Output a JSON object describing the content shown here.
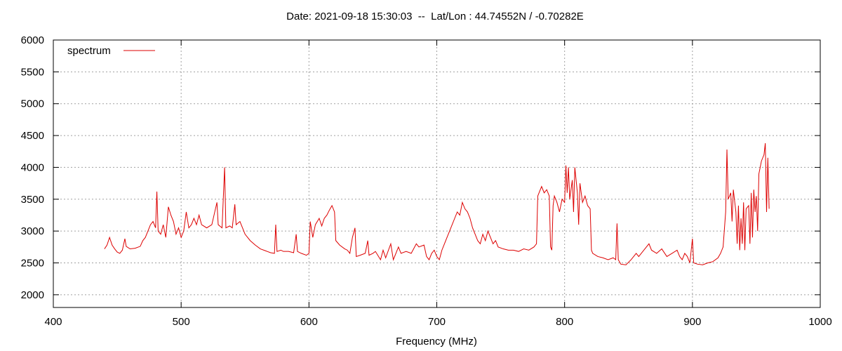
{
  "chart_data": {
    "type": "line",
    "title": "Date: 2021-09-18 15:30:03  --  Lat/Lon : 44.74552N / -0.70282E",
    "x_label": "Frequency (MHz)",
    "xlim": [
      400,
      1000
    ],
    "xticks": [
      400,
      500,
      600,
      700,
      800,
      900,
      1000
    ],
    "ylim": [
      1800,
      6000
    ],
    "yticks": [
      2000,
      2500,
      3000,
      3500,
      4000,
      4500,
      5000,
      5500,
      6000
    ],
    "grid": true,
    "legend": "top left",
    "series": [
      {
        "name": "spectrum",
        "color": "#dd0000",
        "x": [
          440,
          442,
          444,
          446,
          448,
          450,
          452,
          454,
          456,
          457,
          460,
          464,
          468,
          470,
          472,
          474,
          476,
          478,
          480,
          481,
          482,
          484,
          486,
          488,
          490,
          492,
          494,
          496,
          498,
          500,
          502,
          504,
          506,
          508,
          510,
          512,
          514,
          516,
          520,
          524,
          528,
          529,
          532,
          534,
          535,
          538,
          540,
          542,
          543,
          546,
          548,
          550,
          554,
          558,
          562,
          566,
          570,
          573,
          574,
          575,
          578,
          580,
          584,
          588,
          590,
          591,
          594,
          598,
          600,
          601,
          603,
          605,
          608,
          610,
          612,
          614,
          616,
          618,
          620,
          621,
          624,
          628,
          630,
          632,
          634,
          636,
          637,
          640,
          644,
          646,
          647,
          650,
          652,
          656,
          658,
          660,
          664,
          666,
          668,
          670,
          672,
          676,
          680,
          684,
          686,
          690,
          692,
          694,
          696,
          698,
          700,
          702,
          704,
          706,
          708,
          710,
          712,
          714,
          716,
          718,
          720,
          722,
          724,
          726,
          728,
          730,
          732,
          734,
          736,
          738,
          740,
          742,
          744,
          746,
          748,
          752,
          756,
          760,
          764,
          768,
          772,
          776,
          778,
          779,
          780,
          782,
          784,
          786,
          788,
          789,
          790,
          791,
          792,
          794,
          796,
          798,
          800,
          801,
          802,
          803,
          804,
          806,
          807,
          808,
          810,
          811,
          812,
          814,
          816,
          818,
          820,
          821,
          822,
          826,
          830,
          834,
          838,
          840,
          841,
          842,
          844,
          848,
          852,
          856,
          858,
          862,
          866,
          868,
          872,
          876,
          880,
          884,
          888,
          890,
          892,
          894,
          896,
          898,
          900,
          901,
          904,
          908,
          912,
          916,
          920,
          922,
          924,
          926,
          927,
          928,
          930,
          931,
          932,
          934,
          935,
          936,
          937,
          938,
          939,
          940,
          941,
          942,
          944,
          945,
          946,
          947,
          948,
          949,
          950,
          951,
          952,
          954,
          956,
          957,
          958,
          959,
          960
        ],
        "values": [
          2720,
          2780,
          2900,
          2780,
          2720,
          2670,
          2650,
          2700,
          2880,
          2760,
          2720,
          2730,
          2760,
          2850,
          2900,
          3000,
          3100,
          3150,
          3050,
          3620,
          3000,
          2950,
          3100,
          2900,
          3380,
          3250,
          3150,
          2950,
          3050,
          2900,
          3000,
          3300,
          3050,
          3100,
          3200,
          3100,
          3250,
          3100,
          3050,
          3100,
          3450,
          3100,
          3050,
          4000,
          3050,
          3080,
          3050,
          3420,
          3100,
          3150,
          3050,
          2950,
          2850,
          2780,
          2720,
          2690,
          2660,
          2650,
          3100,
          2680,
          2700,
          2680,
          2680,
          2660,
          2950,
          2680,
          2650,
          2620,
          2650,
          3150,
          2900,
          3100,
          3200,
          3080,
          3200,
          3250,
          3330,
          3400,
          3300,
          2850,
          2780,
          2720,
          2700,
          2650,
          2900,
          3050,
          2600,
          2620,
          2650,
          2850,
          2620,
          2650,
          2680,
          2550,
          2700,
          2580,
          2800,
          2550,
          2650,
          2750,
          2650,
          2680,
          2650,
          2800,
          2750,
          2780,
          2600,
          2550,
          2650,
          2700,
          2600,
          2550,
          2700,
          2800,
          2900,
          3000,
          3100,
          3200,
          3300,
          3250,
          3450,
          3350,
          3300,
          3200,
          3050,
          2950,
          2850,
          2800,
          2950,
          2850,
          3000,
          2900,
          2800,
          2850,
          2750,
          2720,
          2700,
          2700,
          2680,
          2720,
          2700,
          2750,
          2800,
          3550,
          3600,
          3700,
          3600,
          3650,
          3550,
          2750,
          2700,
          3400,
          3550,
          3450,
          3300,
          3500,
          3450,
          4030,
          3600,
          4000,
          3500,
          3800,
          3300,
          4000,
          3600,
          3100,
          3750,
          3450,
          3550,
          3400,
          3350,
          2700,
          2650,
          2600,
          2580,
          2550,
          2580,
          2550,
          3120,
          2550,
          2480,
          2470,
          2550,
          2650,
          2600,
          2700,
          2800,
          2700,
          2650,
          2720,
          2600,
          2650,
          2700,
          2600,
          2550,
          2650,
          2600,
          2500,
          2880,
          2500,
          2480,
          2470,
          2500,
          2520,
          2580,
          2650,
          2750,
          3300,
          4280,
          3500,
          3600,
          3150,
          3650,
          3300,
          2800,
          3400,
          2700,
          3200,
          2800,
          3450,
          2700,
          3350,
          3400,
          2800,
          3600,
          2900,
          3650,
          3300,
          3550,
          3000,
          3900,
          4100,
          4200,
          4380,
          3300,
          4150,
          3350
        ]
      }
    ]
  }
}
